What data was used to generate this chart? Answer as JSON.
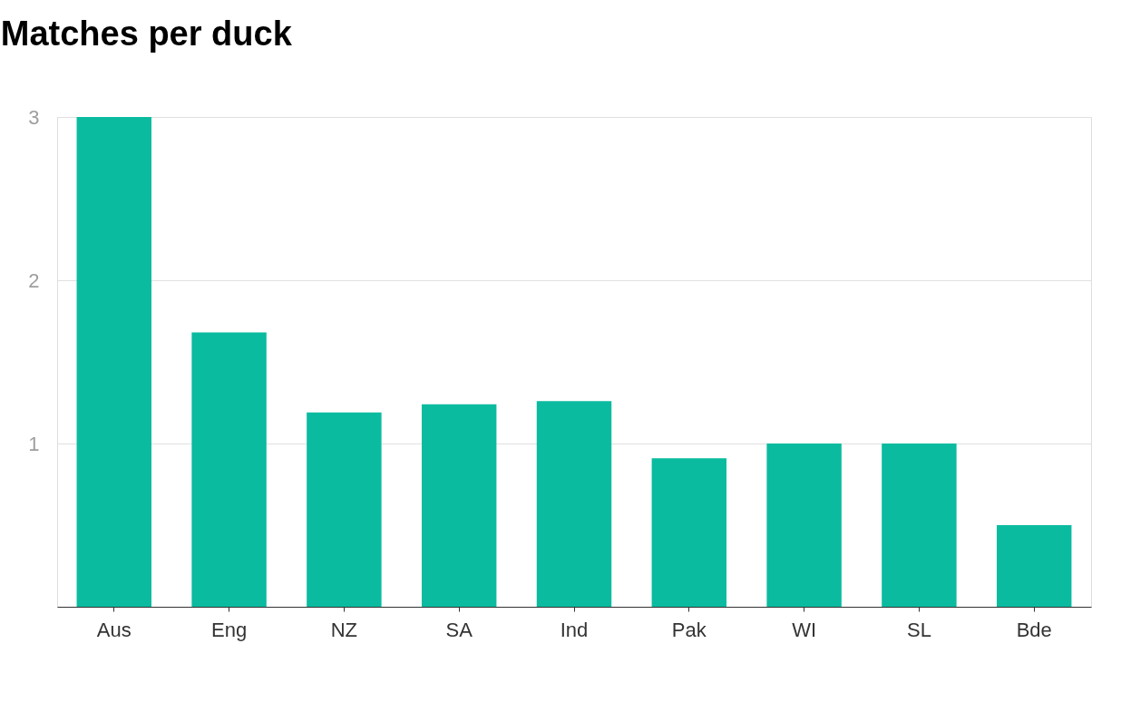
{
  "chart_data": {
    "type": "bar",
    "title": "Matches per duck",
    "categories": [
      "Aus",
      "Eng",
      "NZ",
      "SA",
      "Ind",
      "Pak",
      "WI",
      "SL",
      "Bde"
    ],
    "values": [
      3,
      1.68,
      1.19,
      1.24,
      1.26,
      0.91,
      1.0,
      1.0,
      0.5
    ],
    "color": "#0abb9f",
    "ylim": [
      0,
      3
    ],
    "yticks": [
      1,
      2,
      3
    ],
    "grid": "y"
  }
}
